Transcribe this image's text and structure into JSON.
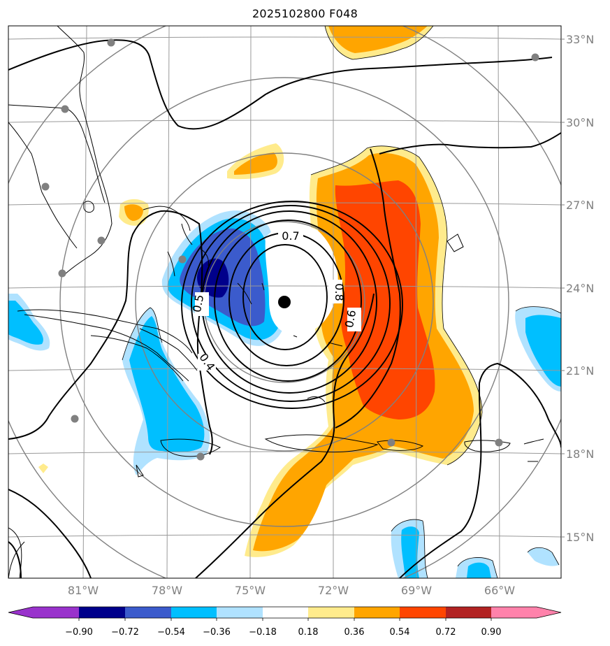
{
  "title": "2025102800 F048",
  "map": {
    "lat_labels": [
      "33°N",
      "30°N",
      "27°N",
      "24°N",
      "21°N",
      "18°N",
      "15°N"
    ],
    "lon_labels": [
      "81°W",
      "78°W",
      "75°W",
      "72°W",
      "69°W",
      "66°W"
    ],
    "contour_labels": [
      "0.7",
      "0.8",
      "0.6",
      "0.5",
      "0.4"
    ],
    "colors": {
      "land_line": "#000000",
      "grid": "#999999",
      "range_rings": "#808080",
      "station_dots": "#808080",
      "center_marker": "#000000"
    }
  },
  "colorbar": {
    "ticks": [
      "−0.90",
      "−0.72",
      "−0.54",
      "−0.36",
      "−0.18",
      "0.18",
      "0.36",
      "0.54",
      "0.72",
      "0.90"
    ],
    "colors": [
      "#9932cc",
      "#00008b",
      "#3b5bcc",
      "#00bfff",
      "#b0e2ff",
      "#ffffff",
      "#ffeb8c",
      "#ffa500",
      "#ff4500",
      "#b22222",
      "#ff82ab"
    ]
  }
}
